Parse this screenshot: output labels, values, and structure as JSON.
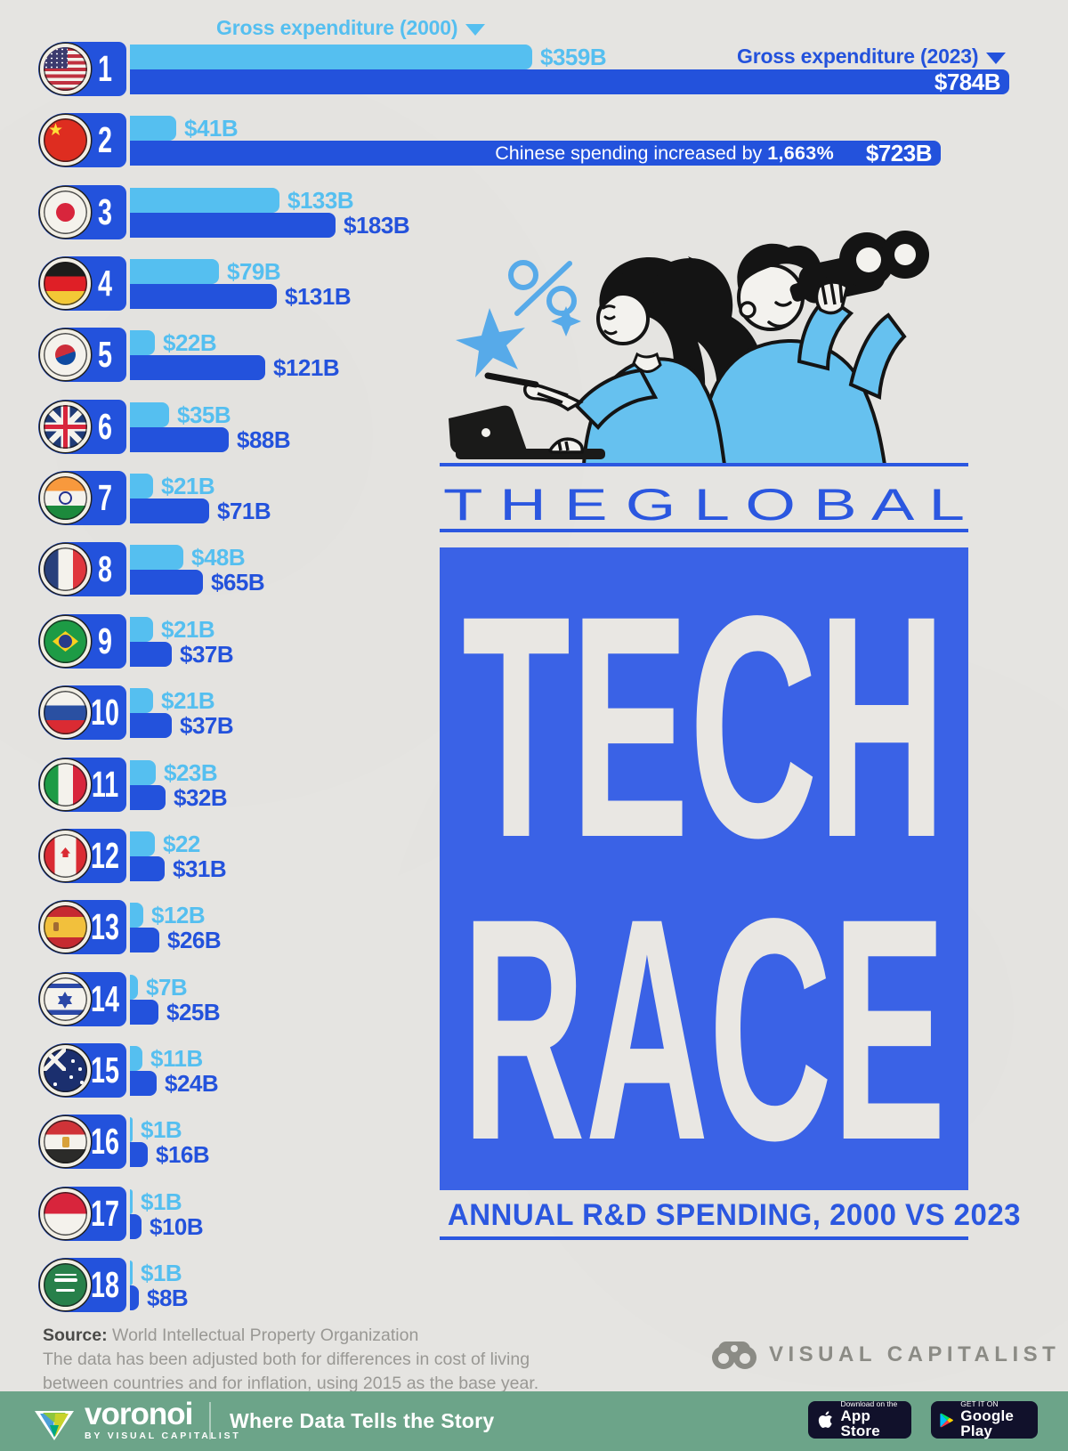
{
  "legend": {
    "y2000": "Gross expenditure (2000)",
    "y2023": "Gross expenditure (2023)"
  },
  "title": {
    "kicker": "T H E   G L O B A L",
    "line1": "TECH",
    "line2": "RACE",
    "subtitle": "ANNUAL R&D SPENDING, 2000 VS 2023"
  },
  "source": {
    "label": "Source:",
    "org": " World Intellectual Property Organization",
    "note_line1": "The data has been adjusted both for differences in cost of living",
    "note_line2": "between countries and for inflation, using 2015 as the base year."
  },
  "branding": {
    "vc_name": "VISUAL CAPITALIST",
    "voronoi_name": "voronoi",
    "voronoi_sub": "BY VISUAL CAPITALIST",
    "tagline": "Where Data Tells the Story",
    "appstore_small": "Download on the",
    "appstore_big": "App Store",
    "gplay_small": "GET IT ON",
    "gplay_big": "Google Play"
  },
  "colors": {
    "bar_2000": "#55BFF0",
    "bar_2023": "#2352DC",
    "title_box": "#3A62E6",
    "title_text": "#2B57E0",
    "footer_green": "#6CA489",
    "badge_navy": "#11112b",
    "background": "#e5e4e1"
  },
  "chart_data": {
    "type": "bar",
    "title": "The Global Tech Race",
    "subtitle": "Annual R&D spending, 2000 vs 2023",
    "unit": "USD billions (inflation & PPP adjusted, base year 2015)",
    "legend_position": "top",
    "series_names": [
      "Gross expenditure (2000)",
      "Gross expenditure (2023)"
    ],
    "annotation_china": {
      "prefix": "Chinese spending increased by ",
      "bold": "1,663%"
    },
    "rows": [
      {
        "rank": 1,
        "country": "United States",
        "flag": "us",
        "v2000": 359,
        "v2023": 784,
        "label2000": "$359B",
        "label2023": "$784B",
        "inside2023": true
      },
      {
        "rank": 2,
        "country": "China",
        "flag": "cn",
        "v2000": 41,
        "v2023": 723,
        "label2000": "$41B",
        "label2023": "$723B",
        "inside2023": true,
        "note": true
      },
      {
        "rank": 3,
        "country": "Japan",
        "flag": "jp",
        "v2000": 133,
        "v2023": 183,
        "label2000": "$133B",
        "label2023": "$183B"
      },
      {
        "rank": 4,
        "country": "Germany",
        "flag": "de",
        "v2000": 79,
        "v2023": 131,
        "label2000": "$79B",
        "label2023": "$131B"
      },
      {
        "rank": 5,
        "country": "South Korea",
        "flag": "kr",
        "v2000": 22,
        "v2023": 121,
        "label2000": "$22B",
        "label2023": "$121B"
      },
      {
        "rank": 6,
        "country": "United Kingdom",
        "flag": "gb",
        "v2000": 35,
        "v2023": 88,
        "label2000": "$35B",
        "label2023": "$88B"
      },
      {
        "rank": 7,
        "country": "India",
        "flag": "in",
        "v2000": 21,
        "v2023": 71,
        "label2000": "$21B",
        "label2023": "$71B"
      },
      {
        "rank": 8,
        "country": "France",
        "flag": "fr",
        "v2000": 48,
        "v2023": 65,
        "label2000": "$48B",
        "label2023": "$65B"
      },
      {
        "rank": 9,
        "country": "Brazil",
        "flag": "br",
        "v2000": 21,
        "v2023": 37,
        "label2000": "$21B",
        "label2023": "$37B"
      },
      {
        "rank": 10,
        "country": "Russia",
        "flag": "ru",
        "v2000": 21,
        "v2023": 37,
        "label2000": "$21B",
        "label2023": "$37B"
      },
      {
        "rank": 11,
        "country": "Italy",
        "flag": "it",
        "v2000": 23,
        "v2023": 32,
        "label2000": "$23B",
        "label2023": "$32B"
      },
      {
        "rank": 12,
        "country": "Canada",
        "flag": "ca",
        "v2000": 22,
        "v2023": 31,
        "label2000": "$22",
        "label2023": "$31B"
      },
      {
        "rank": 13,
        "country": "Spain",
        "flag": "es",
        "v2000": 12,
        "v2023": 26,
        "label2000": "$12B",
        "label2023": "$26B"
      },
      {
        "rank": 14,
        "country": "Israel",
        "flag": "il",
        "v2000": 7,
        "v2023": 25,
        "label2000": "$7B",
        "label2023": "$25B"
      },
      {
        "rank": 15,
        "country": "Australia",
        "flag": "au",
        "v2000": 11,
        "v2023": 24,
        "label2000": "$11B",
        "label2023": "$24B"
      },
      {
        "rank": 16,
        "country": "Egypt",
        "flag": "eg",
        "v2000": 1,
        "v2023": 16,
        "label2000": "$1B",
        "label2023": "$16B"
      },
      {
        "rank": 17,
        "country": "Indonesia",
        "flag": "id",
        "v2000": 1,
        "v2023": 10,
        "label2000": "$1B",
        "label2023": "$10B"
      },
      {
        "rank": 18,
        "country": "Saudi Arabia",
        "flag": "sa",
        "v2000": 1,
        "v2023": 8,
        "label2000": "$1B",
        "label2023": "$8B"
      }
    ]
  }
}
